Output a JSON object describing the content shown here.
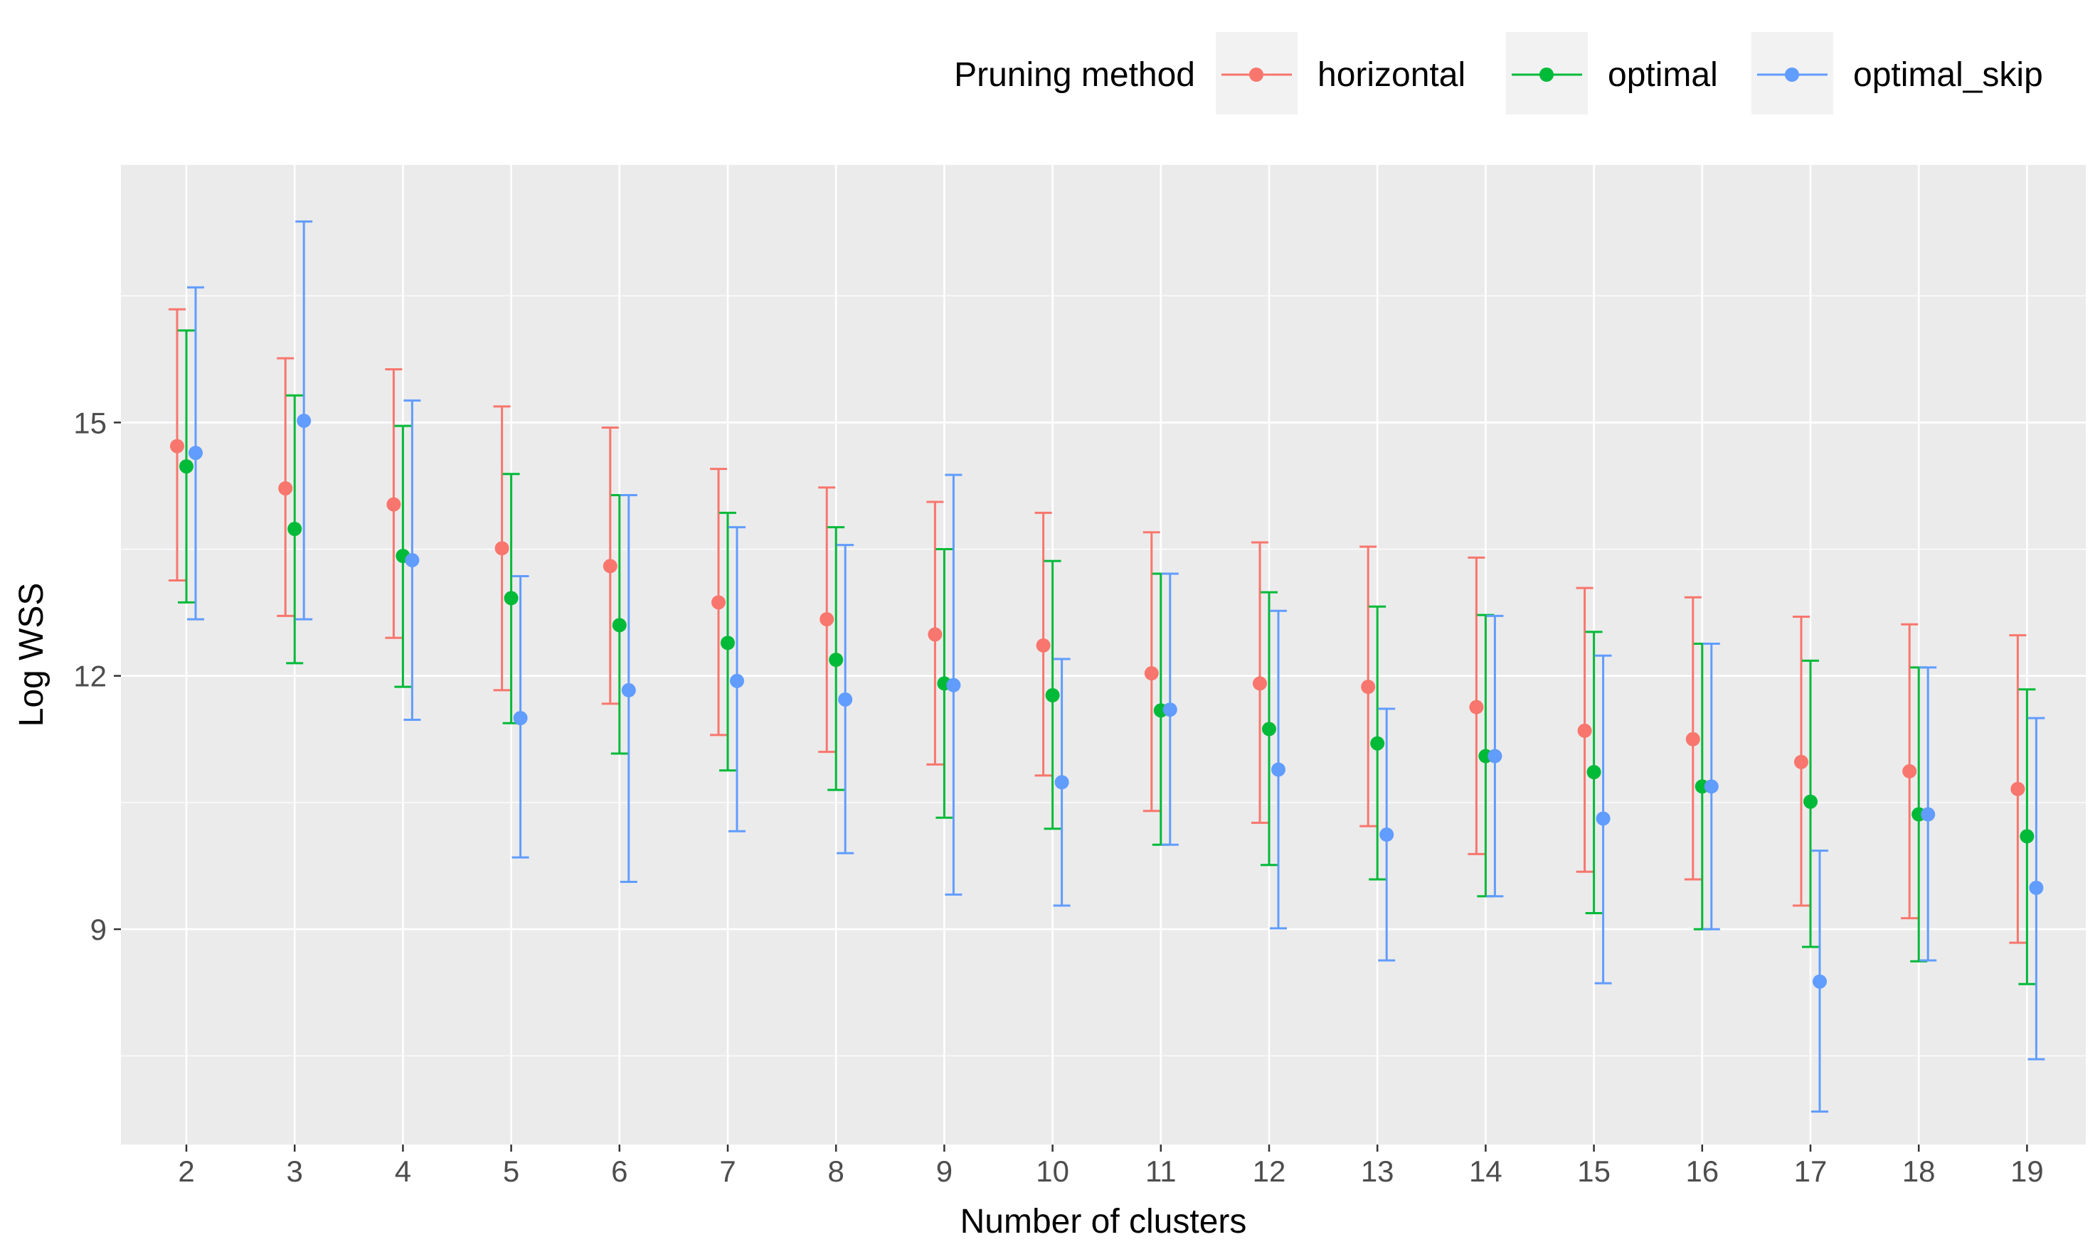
{
  "chart_data": {
    "type": "scatter",
    "subtype": "point-with-errorbars",
    "title": "",
    "xlabel": "Number of clusters",
    "ylabel": "Log WSS",
    "categories": [
      "2",
      "3",
      "4",
      "5",
      "6",
      "7",
      "8",
      "9",
      "10",
      "11",
      "12",
      "13",
      "14",
      "15",
      "16",
      "17",
      "18",
      "19"
    ],
    "ylim": [
      6.45,
      18.05
    ],
    "yticks": [
      9,
      12,
      15
    ],
    "ytick_labels": [
      "9",
      "12",
      "15"
    ],
    "grid": true,
    "legend": {
      "title": "Pruning method",
      "position": "top-right"
    },
    "series": [
      {
        "name": "horizontal",
        "color": "#F8766D",
        "values": [
          14.72,
          14.22,
          14.03,
          13.51,
          13.3,
          12.87,
          12.67,
          12.49,
          12.36,
          12.03,
          11.91,
          11.87,
          11.63,
          11.35,
          11.25,
          10.98,
          10.87,
          10.66
        ],
        "lower": [
          13.13,
          12.71,
          12.45,
          11.83,
          11.67,
          11.3,
          11.1,
          10.95,
          10.82,
          10.4,
          10.26,
          10.22,
          9.89,
          9.68,
          9.59,
          9.28,
          9.13,
          8.84
        ],
        "upper": [
          16.34,
          15.76,
          15.63,
          15.19,
          14.94,
          14.45,
          14.23,
          14.06,
          13.93,
          13.7,
          13.58,
          13.53,
          13.4,
          13.04,
          12.93,
          12.7,
          12.61,
          12.48
        ]
      },
      {
        "name": "optimal",
        "color": "#00BA38",
        "values": [
          14.48,
          13.74,
          13.42,
          12.92,
          12.6,
          12.39,
          12.19,
          11.91,
          11.77,
          11.59,
          11.37,
          11.2,
          11.05,
          10.86,
          10.69,
          10.51,
          10.36,
          10.1
        ],
        "lower": [
          12.87,
          12.15,
          11.87,
          11.44,
          11.08,
          10.88,
          10.65,
          10.32,
          10.19,
          10.0,
          9.76,
          9.59,
          9.39,
          9.19,
          9.0,
          8.79,
          8.62,
          8.35
        ],
        "upper": [
          16.09,
          15.32,
          14.96,
          14.39,
          14.14,
          13.93,
          13.76,
          13.5,
          13.36,
          13.21,
          12.99,
          12.82,
          12.72,
          12.52,
          12.38,
          12.18,
          12.1,
          11.84
        ]
      },
      {
        "name": "optimal_skip",
        "color": "#619CFF",
        "values": [
          14.64,
          15.02,
          13.37,
          11.5,
          11.83,
          11.94,
          11.72,
          11.89,
          10.74,
          11.6,
          10.89,
          10.12,
          11.05,
          10.31,
          10.69,
          8.38,
          10.36,
          9.49
        ],
        "lower": [
          12.67,
          12.67,
          11.48,
          9.85,
          9.56,
          10.16,
          9.9,
          9.41,
          9.28,
          10.0,
          9.01,
          8.63,
          9.39,
          8.36,
          9.0,
          6.84,
          8.63,
          7.46
        ],
        "upper": [
          16.6,
          17.38,
          15.26,
          13.18,
          14.14,
          13.76,
          13.55,
          14.38,
          12.2,
          13.21,
          12.77,
          11.61,
          12.71,
          12.24,
          12.38,
          9.93,
          12.1,
          11.5
        ]
      }
    ]
  }
}
